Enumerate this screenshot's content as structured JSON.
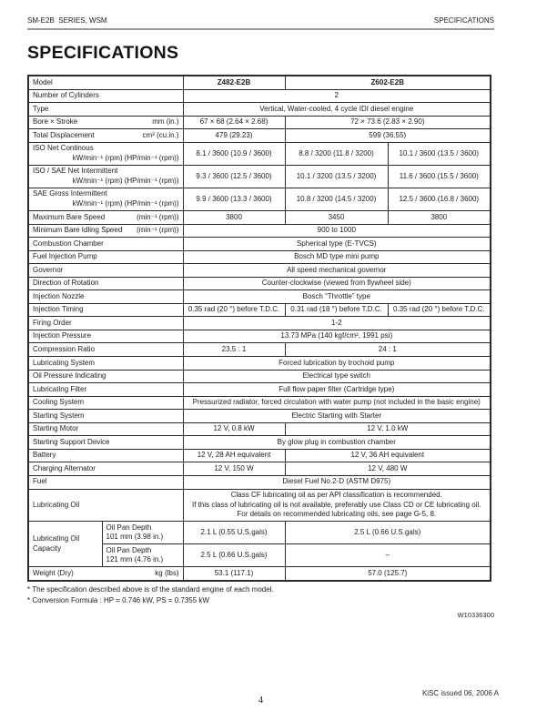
{
  "page": {
    "header_left": "SM-E2B  SERIES, WSM",
    "header_right": "SPECIFICATIONS",
    "title": "SPECIFICATIONS",
    "footnotes": [
      "* The specification described above is of the standard engine of each model.",
      "* Conversion Formula : HP = 0.746 kW, PS = 0.7355 kW"
    ],
    "ref_code": "W10336300",
    "page_number": "4",
    "footer_right": "KiSC issued 06, 2006 A"
  },
  "spec_table": {
    "models": [
      "Z482-E2B",
      "Z602-E2B"
    ],
    "rows": [
      {
        "label": "Model",
        "cells": [
          {
            "t": "Z482-E2B",
            "span": 1,
            "bold": true
          },
          {
            "t": "Z602-E2B",
            "span": 2,
            "bold": true
          }
        ]
      },
      {
        "label": "Number of Cylinders",
        "cells": [
          {
            "t": "2",
            "span": 3
          }
        ]
      },
      {
        "label": "Type",
        "cells": [
          {
            "t": "Vertical, Water-cooled, 4 cycle IDI diesel engine",
            "span": 3
          }
        ]
      },
      {
        "label": "Bore × Stroke",
        "unit": "mm (in.)",
        "cells": [
          {
            "t": "67 × 68 (2.64 × 2.68)",
            "span": 1
          },
          {
            "t": "72 × 73.6 (2.83 × 2.90)",
            "span": 2
          }
        ]
      },
      {
        "label": "Total Displacement",
        "unit": "cm³ (cu.in.)",
        "cells": [
          {
            "t": "479 (29.23)",
            "span": 1
          },
          {
            "t": "599 (36.55)",
            "span": 2
          }
        ]
      },
      {
        "label": "ISO Net Continous",
        "unit": "kW/min⁻¹ (rpm) (HP/min⁻¹ (rpm))",
        "unit_line2": true,
        "cells": [
          {
            "t": "8.1 / 3600 (10.9 / 3600)",
            "span": 1
          },
          {
            "t": "8.8 / 3200 (11.8 / 3200)",
            "span": 1
          },
          {
            "t": "10.1 / 3600 (13.5 / 3600)",
            "span": 1
          }
        ]
      },
      {
        "label": "ISO / SAE Net Intermittent",
        "unit": "kW/min⁻¹ (rpm) (HP/min⁻¹ (rpm))",
        "unit_line2": true,
        "cells": [
          {
            "t": "9.3 / 3600 (12.5 / 3600)",
            "span": 1
          },
          {
            "t": "10.1 / 3200 (13.5 / 3200)",
            "span": 1
          },
          {
            "t": "11.6 / 3600 (15.5 / 3600)",
            "span": 1
          }
        ]
      },
      {
        "label": "SAE Gross Intermittent",
        "unit": "kW/min⁻¹ (rpm) (HP/min⁻¹ (rpm))",
        "unit_line2": true,
        "cells": [
          {
            "t": "9.9 / 3600 (13.3 / 3600)",
            "span": 1
          },
          {
            "t": "10.8 / 3200 (14.5 / 3200)",
            "span": 1
          },
          {
            "t": "12.5 / 3600 (16.8 / 3600)",
            "span": 1
          }
        ]
      },
      {
        "label": "Maximum Bare Speed",
        "unit": "(min⁻¹ (rpm))",
        "cells": [
          {
            "t": "3800",
            "span": 1
          },
          {
            "t": "3450",
            "span": 1
          },
          {
            "t": "3800",
            "span": 1
          }
        ]
      },
      {
        "label": "Minimum Bare Idling Speed",
        "unit": "(min⁻¹ (rpm))",
        "cells": [
          {
            "t": "900 to 1000",
            "span": 3
          }
        ]
      },
      {
        "label": "Combustion Chamber",
        "cells": [
          {
            "t": "Spherical type (E-TVCS)",
            "span": 3
          }
        ]
      },
      {
        "label": "Fuel Injection Pump",
        "cells": [
          {
            "t": "Bosch MD type mini pump",
            "span": 3
          }
        ]
      },
      {
        "label": "Governor",
        "cells": [
          {
            "t": "All speed mechanical governor",
            "span": 3
          }
        ]
      },
      {
        "label": "Direction of Rotation",
        "cells": [
          {
            "t": "Counter-clockwise (viewed from flywheel side)",
            "span": 3
          }
        ]
      },
      {
        "label": "Injection Nozzle",
        "cells": [
          {
            "t": "Bosch “Throttle” type",
            "span": 3
          }
        ]
      },
      {
        "label": "Injection Timing",
        "cells": [
          {
            "t": "0.35 rad (20 °) before T.D.C.",
            "span": 1
          },
          {
            "t": "0.31 rad (18 °) before T.D.C.",
            "span": 1
          },
          {
            "t": "0.35 rad (20 °) before T.D.C.",
            "span": 1
          }
        ]
      },
      {
        "label": "Firing Order",
        "cells": [
          {
            "t": "1-2",
            "span": 3
          }
        ]
      },
      {
        "label": "Injection Pressure",
        "cells": [
          {
            "t": "13.73 MPa (140 kgf/cm², 1991 psi)",
            "span": 3
          }
        ]
      },
      {
        "label": "Compression Ratio",
        "cells": [
          {
            "t": "23.5 : 1",
            "span": 1
          },
          {
            "t": "24 : 1",
            "span": 2
          }
        ]
      },
      {
        "label": "Lubricating System",
        "cells": [
          {
            "t": "Forced lubrication by trochoid pump",
            "span": 3
          }
        ]
      },
      {
        "label": "Oil Pressure Indicating",
        "cells": [
          {
            "t": "Electrical type switch",
            "span": 3
          }
        ]
      },
      {
        "label": "Lubricating Filter",
        "cells": [
          {
            "t": "Full flow paper filter (Cartridge type)",
            "span": 3
          }
        ]
      },
      {
        "label": "Cooling System",
        "cells": [
          {
            "t": "Pressurized radiator, forced circulation with water pump (not included in the basic engine)",
            "span": 3
          }
        ]
      },
      {
        "label": "Starting System",
        "cells": [
          {
            "t": "Electric Starting with Starter",
            "span": 3
          }
        ]
      },
      {
        "label": "Starting Motor",
        "cells": [
          {
            "t": "12 V, 0.8 kW",
            "span": 1
          },
          {
            "t": "12 V, 1.0 kW",
            "span": 2
          }
        ]
      },
      {
        "label": "Starting Support Device",
        "cells": [
          {
            "t": "By glow plug in combustion chamber",
            "span": 3
          }
        ]
      },
      {
        "label": "Battery",
        "cells": [
          {
            "t": "12 V, 28 AH equivalent",
            "span": 1
          },
          {
            "t": "12 V, 36 AH equivalent",
            "span": 2
          }
        ]
      },
      {
        "label": "Charging Alternator",
        "cells": [
          {
            "t": "12 V, 150 W",
            "span": 1
          },
          {
            "t": "12 V, 480 W",
            "span": 2
          }
        ]
      },
      {
        "label": "Fuel",
        "cells": [
          {
            "t": "Diesel Fuel No.2-D (ASTM D975)",
            "span": 3
          }
        ]
      },
      {
        "label": "Lubricating Oil",
        "cells": [
          {
            "t": "Class CF lubricating oil as per API classification is recommended.\nIf this class of lubricating oil is not available, preferably use Class CD or CE lubricating oil.\nFor details on recommended lubricating oils, see page G-5, 8.",
            "span": 3
          }
        ]
      },
      {
        "label": "Lubricating Oil Capacity",
        "label_rowspan": 2,
        "sublabel": "Oil Pan Depth\n101 mm (3.98 in.)",
        "cells": [
          {
            "t": "2.1 L (0.55 U.S.gals)",
            "span": 1
          },
          {
            "t": "2.5 L (0.66 U.S.gals)",
            "span": 2
          }
        ]
      },
      {
        "sublabel": "Oil Pan Depth\n121 mm (4.76 in.)",
        "cells": [
          {
            "t": "2.5 L (0.66 U.S.gals)",
            "span": 1
          },
          {
            "t": "–",
            "span": 2
          }
        ]
      },
      {
        "label": "Weight (Dry)",
        "unit": "kg (lbs)",
        "cells": [
          {
            "t": "53.1 (117.1)",
            "span": 1
          },
          {
            "t": "57.0 (125.7)",
            "span": 2
          }
        ]
      }
    ]
  }
}
